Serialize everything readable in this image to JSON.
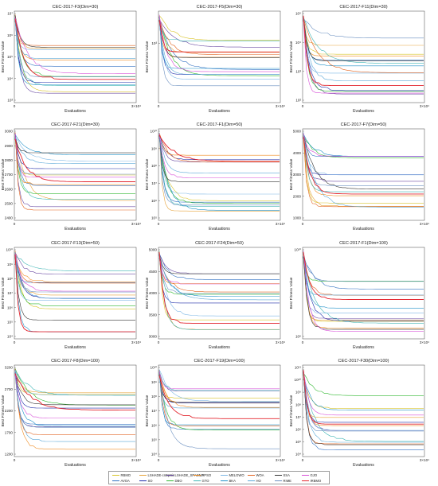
{
  "figure": {
    "algorithms": [
      {
        "name": "RBMO",
        "color": "#d9c42a"
      },
      {
        "name": "AVOA",
        "color": "#2f6fc2"
      },
      {
        "name": "LSHADE-cnEpSin",
        "color": "#e7a33a"
      },
      {
        "name": "SO",
        "color": "#1c2aa8"
      },
      {
        "name": "LSHADE_SPACMA",
        "color": "#6a4aa3"
      },
      {
        "name": "DBO",
        "color": "#2eb82e"
      },
      {
        "name": "PPSO",
        "color": "#f08c22"
      },
      {
        "name": "GTO",
        "color": "#3db5b5"
      },
      {
        "name": "MELGWO",
        "color": "#7fb8e6"
      },
      {
        "name": "BKA",
        "color": "#1e90c8"
      },
      {
        "name": "WOA",
        "color": "#e2621e"
      },
      {
        "name": "HO",
        "color": "#5aa8d8"
      },
      {
        "name": "SSA",
        "color": "#333333"
      },
      {
        "name": "RIME",
        "color": "#6a8fc0"
      },
      {
        "name": "GJO",
        "color": "#d84fd8"
      },
      {
        "name": "IRBMO",
        "color": "#e3262f"
      }
    ]
  },
  "chart_data": [
    {
      "type": "line",
      "title": "CEC-2017-F3(Dim=30)",
      "xlabel": "Evaluations",
      "ylabel": "Best Fitness Value",
      "x_tick_labels": [
        "0",
        "3×10⁴"
      ],
      "y_tick_labels": [
        "10⁷",
        "10⁶",
        "10⁵",
        "10⁴",
        "10³"
      ],
      "yscale": "log"
    },
    {
      "type": "line",
      "title": "CEC-2017-F5(Dim=30)",
      "xlabel": "Evaluations",
      "ylabel": "Best Fitness Value",
      "x_tick_labels": [
        "0",
        "3×10⁴"
      ],
      "y_tick_labels": [
        "10³"
      ],
      "yscale": "log"
    },
    {
      "type": "line",
      "title": "CEC-2017-F11(Dim=30)",
      "xlabel": "Evaluations",
      "ylabel": "Best Fitness Value",
      "x_tick_labels": [
        "0",
        "3×10⁴"
      ],
      "y_tick_labels": [
        "10⁵",
        "10⁴",
        "10³",
        "10²"
      ],
      "yscale": "log"
    },
    {
      "type": "line",
      "title": "CEC-2017-F21(Dim=30)",
      "xlabel": "Evaluations",
      "ylabel": "Best Fitness Value",
      "x_tick_labels": [
        "0",
        "3×10⁴"
      ],
      "y_tick_labels": [
        "3000",
        "2900",
        "2800",
        "2700",
        "2600",
        "2500",
        "2400"
      ],
      "ylim": [
        2350,
        3000
      ]
    },
    {
      "type": "line",
      "title": "CEC-2017-F1(Dim=50)",
      "xlabel": "Evaluations",
      "ylabel": "Best Fitness Value",
      "x_tick_labels": [
        "0",
        "3×10⁴"
      ],
      "y_tick_labels": [
        "10¹⁰",
        "10⁹",
        "10⁸",
        "10⁷",
        "10⁶",
        "10⁵"
      ],
      "yscale": "log"
    },
    {
      "type": "line",
      "title": "CEC-2017-F7(Dim=50)",
      "xlabel": "Evaluations",
      "ylabel": "Best Fitness Value",
      "x_tick_labels": [
        "0",
        "3×10⁴"
      ],
      "y_tick_labels": [
        "5000",
        "4000",
        "3000",
        "2000",
        "1000"
      ],
      "yscale": "log"
    },
    {
      "type": "line",
      "title": "CEC-2017-F13(Dim=50)",
      "xlabel": "Evaluations",
      "ylabel": "Best Fitness Value",
      "x_tick_labels": [
        "0",
        "3×10⁴"
      ],
      "y_tick_labels": [
        "10¹⁰",
        "10⁹",
        "10⁸",
        "10⁷",
        "10⁶",
        "10⁵",
        "10⁴"
      ],
      "yscale": "log"
    },
    {
      "type": "line",
      "title": "CEC-2017-F24(Dim=50)",
      "xlabel": "Evaluations",
      "ylabel": "Best Fitness Value",
      "x_tick_labels": [
        "0",
        "3×10⁴"
      ],
      "y_tick_labels": [
        "5000",
        "4500",
        "4000",
        "3500",
        "3000"
      ],
      "ylim": [
        3000,
        5000
      ]
    },
    {
      "type": "line",
      "title": "CEC-2017-F1(Dim=100)",
      "xlabel": "Evaluations",
      "ylabel": "Best Fitness Value",
      "x_tick_labels": [
        "0",
        "3×10⁴"
      ],
      "y_tick_labels": [
        "10¹⁰",
        "10⁸"
      ],
      "yscale": "log"
    },
    {
      "type": "line",
      "title": "CEC-2017-F8(Dim=100)",
      "xlabel": "Evaluations",
      "ylabel": "Best Fitness Value",
      "x_tick_labels": [
        "0",
        "3×10⁴"
      ],
      "y_tick_labels": [
        "3200",
        "2700",
        "2200",
        "1700",
        "1200"
      ],
      "ylim": [
        1200,
        3200
      ]
    },
    {
      "type": "line",
      "title": "CEC-2017-F19(Dim=100)",
      "xlabel": "Evaluations",
      "ylabel": "Best Fitness Value",
      "x_tick_labels": [
        "0",
        "3×10⁴"
      ],
      "y_tick_labels": [
        "10¹⁰",
        "10⁹",
        "10⁸",
        "10⁷",
        "10⁶",
        "10⁵",
        "10⁴"
      ],
      "yscale": "log"
    },
    {
      "type": "line",
      "title": "CEC-2017-F30(Dim=100)",
      "xlabel": "Evaluations",
      "ylabel": "Best Fitness Value",
      "x_tick_labels": [
        "0",
        "3×10⁴"
      ],
      "y_tick_labels": [
        "10¹¹",
        "10¹⁰",
        "10⁹",
        "10⁸",
        "10⁷",
        "10⁶",
        "10⁵",
        "10⁴"
      ],
      "yscale": "log"
    }
  ]
}
